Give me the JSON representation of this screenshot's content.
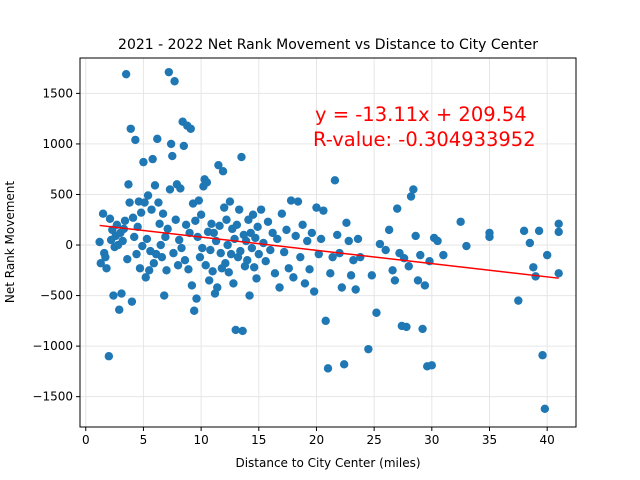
{
  "chart_data": {
    "type": "scatter",
    "title": "2021 - 2022 Net Rank Movement vs Distance to City Center",
    "xlabel": "Distance to City Center (miles)",
    "ylabel": "Net Rank Movement",
    "xlim": [
      -0.5,
      42.5
    ],
    "ylim": [
      -1800,
      1850
    ],
    "xticks": [
      0,
      5,
      10,
      15,
      20,
      25,
      30,
      35,
      40
    ],
    "yticks": [
      -1500,
      -1000,
      -500,
      0,
      500,
      1000,
      1500
    ],
    "grid": true,
    "point_color": "#1f77b4",
    "line_color": "#ff0000",
    "regression": {
      "slope": -13.11,
      "intercept": 209.54,
      "x_range": [
        1.2,
        41.0
      ]
    },
    "annotations": [
      "y = -13.11x + 209.54",
      "R-value: -0.304933952"
    ],
    "points": [
      [
        1.2,
        30
      ],
      [
        1.3,
        -180
      ],
      [
        1.5,
        310
      ],
      [
        1.6,
        -80
      ],
      [
        1.7,
        -120
      ],
      [
        1.8,
        -230
      ],
      [
        2.0,
        -1100
      ],
      [
        2.1,
        260
      ],
      [
        2.2,
        50
      ],
      [
        2.3,
        150
      ],
      [
        2.4,
        -500
      ],
      [
        2.5,
        -20
      ],
      [
        2.6,
        90
      ],
      [
        2.7,
        200
      ],
      [
        2.8,
        0
      ],
      [
        2.9,
        -640
      ],
      [
        3.0,
        120
      ],
      [
        3.1,
        -480
      ],
      [
        3.2,
        40
      ],
      [
        3.3,
        160
      ],
      [
        3.4,
        240
      ],
      [
        3.5,
        1690
      ],
      [
        3.6,
        -140
      ],
      [
        3.7,
        600
      ],
      [
        3.8,
        420
      ],
      [
        3.9,
        1150
      ],
      [
        4.0,
        -560
      ],
      [
        4.1,
        270
      ],
      [
        4.2,
        80
      ],
      [
        4.3,
        1040
      ],
      [
        4.4,
        -90
      ],
      [
        4.5,
        180
      ],
      [
        4.6,
        430
      ],
      [
        4.7,
        -230
      ],
      [
        4.8,
        320
      ],
      [
        4.9,
        -10
      ],
      [
        5.0,
        820
      ],
      [
        5.1,
        420
      ],
      [
        5.2,
        -320
      ],
      [
        5.3,
        60
      ],
      [
        5.4,
        490
      ],
      [
        5.5,
        -250
      ],
      [
        5.6,
        -60
      ],
      [
        5.7,
        350
      ],
      [
        5.8,
        850
      ],
      [
        5.9,
        -180
      ],
      [
        6.0,
        590
      ],
      [
        6.1,
        -90
      ],
      [
        6.2,
        1050
      ],
      [
        6.3,
        420
      ],
      [
        6.4,
        210
      ],
      [
        6.5,
        0
      ],
      [
        6.6,
        -120
      ],
      [
        6.7,
        310
      ],
      [
        6.8,
        -500
      ],
      [
        6.9,
        80
      ],
      [
        7.0,
        -250
      ],
      [
        7.1,
        160
      ],
      [
        7.2,
        1710
      ],
      [
        7.3,
        550
      ],
      [
        7.4,
        1000
      ],
      [
        7.5,
        880
      ],
      [
        7.6,
        -80
      ],
      [
        7.7,
        1620
      ],
      [
        7.8,
        250
      ],
      [
        7.9,
        600
      ],
      [
        8.0,
        -200
      ],
      [
        8.1,
        50
      ],
      [
        8.2,
        560
      ],
      [
        8.3,
        -30
      ],
      [
        8.4,
        1220
      ],
      [
        8.5,
        980
      ],
      [
        8.6,
        -150
      ],
      [
        8.7,
        200
      ],
      [
        8.8,
        1180
      ],
      [
        8.9,
        -240
      ],
      [
        9.0,
        120
      ],
      [
        9.1,
        1150
      ],
      [
        9.2,
        -400
      ],
      [
        9.3,
        410
      ],
      [
        9.4,
        -650
      ],
      [
        9.5,
        240
      ],
      [
        9.6,
        -530
      ],
      [
        9.7,
        80
      ],
      [
        9.8,
        440
      ],
      [
        9.9,
        -120
      ],
      [
        10.0,
        300
      ],
      [
        10.1,
        -30
      ],
      [
        10.2,
        580
      ],
      [
        10.3,
        650
      ],
      [
        10.4,
        -200
      ],
      [
        10.5,
        620
      ],
      [
        10.6,
        130
      ],
      [
        10.7,
        -350
      ],
      [
        10.8,
        -50
      ],
      [
        10.9,
        210
      ],
      [
        11.0,
        -260
      ],
      [
        11.1,
        120
      ],
      [
        11.2,
        -480
      ],
      [
        11.3,
        40
      ],
      [
        11.4,
        -420
      ],
      [
        11.5,
        790
      ],
      [
        11.6,
        190
      ],
      [
        11.7,
        -80
      ],
      [
        11.8,
        -230
      ],
      [
        11.9,
        730
      ],
      [
        12.0,
        370
      ],
      [
        12.1,
        -180
      ],
      [
        12.2,
        250
      ],
      [
        12.3,
        0
      ],
      [
        12.4,
        -270
      ],
      [
        12.5,
        430
      ],
      [
        12.6,
        -90
      ],
      [
        12.7,
        160
      ],
      [
        12.8,
        -380
      ],
      [
        12.9,
        60
      ],
      [
        13.0,
        -840
      ],
      [
        13.1,
        200
      ],
      [
        13.2,
        -120
      ],
      [
        13.3,
        350
      ],
      [
        13.4,
        -60
      ],
      [
        13.5,
        870
      ],
      [
        13.6,
        -850
      ],
      [
        13.7,
        100
      ],
      [
        13.8,
        -210
      ],
      [
        13.9,
        40
      ],
      [
        14.0,
        -150
      ],
      [
        14.1,
        250
      ],
      [
        14.2,
        -500
      ],
      [
        14.3,
        120
      ],
      [
        14.4,
        -30
      ],
      [
        14.5,
        300
      ],
      [
        14.6,
        -220
      ],
      [
        14.7,
        70
      ],
      [
        14.8,
        -330
      ],
      [
        14.9,
        180
      ],
      [
        15.0,
        -90
      ],
      [
        15.2,
        350
      ],
      [
        15.4,
        20
      ],
      [
        15.6,
        -160
      ],
      [
        15.8,
        230
      ],
      [
        16.0,
        -50
      ],
      [
        16.2,
        120
      ],
      [
        16.4,
        -280
      ],
      [
        16.6,
        60
      ],
      [
        16.8,
        -420
      ],
      [
        17.0,
        310
      ],
      [
        17.2,
        -70
      ],
      [
        17.4,
        150
      ],
      [
        17.6,
        -230
      ],
      [
        17.8,
        440
      ],
      [
        18.0,
        -320
      ],
      [
        18.2,
        90
      ],
      [
        18.4,
        430
      ],
      [
        18.6,
        -120
      ],
      [
        18.8,
        200
      ],
      [
        19.0,
        -380
      ],
      [
        19.2,
        40
      ],
      [
        19.4,
        -240
      ],
      [
        19.6,
        120
      ],
      [
        19.8,
        -460
      ],
      [
        20.0,
        370
      ],
      [
        20.2,
        -90
      ],
      [
        20.4,
        60
      ],
      [
        20.6,
        340
      ],
      [
        20.8,
        -750
      ],
      [
        21.0,
        -1220
      ],
      [
        21.2,
        -280
      ],
      [
        21.4,
        -120
      ],
      [
        21.6,
        640
      ],
      [
        21.8,
        100
      ],
      [
        22.0,
        -80
      ],
      [
        22.2,
        -420
      ],
      [
        22.4,
        -1180
      ],
      [
        22.6,
        220
      ],
      [
        22.8,
        40
      ],
      [
        23.0,
        -300
      ],
      [
        23.2,
        -150
      ],
      [
        23.4,
        -440
      ],
      [
        23.6,
        60
      ],
      [
        23.8,
        -120
      ],
      [
        24.5,
        -1030
      ],
      [
        24.8,
        -300
      ],
      [
        25.2,
        -670
      ],
      [
        25.5,
        10
      ],
      [
        26.0,
        -50
      ],
      [
        26.3,
        150
      ],
      [
        26.6,
        -250
      ],
      [
        26.8,
        -350
      ],
      [
        27.0,
        360
      ],
      [
        27.2,
        -80
      ],
      [
        27.4,
        -800
      ],
      [
        27.6,
        -130
      ],
      [
        27.8,
        -810
      ],
      [
        28.0,
        -210
      ],
      [
        28.2,
        480
      ],
      [
        28.4,
        550
      ],
      [
        28.6,
        90
      ],
      [
        28.8,
        -350
      ],
      [
        29.0,
        -100
      ],
      [
        29.2,
        -830
      ],
      [
        29.4,
        -400
      ],
      [
        29.6,
        -1200
      ],
      [
        29.8,
        -160
      ],
      [
        30.0,
        -1190
      ],
      [
        30.2,
        70
      ],
      [
        30.5,
        40
      ],
      [
        31.0,
        -100
      ],
      [
        32.5,
        230
      ],
      [
        33.0,
        -10
      ],
      [
        35.0,
        80
      ],
      [
        35.0,
        120
      ],
      [
        37.5,
        -550
      ],
      [
        38.0,
        140
      ],
      [
        38.5,
        20
      ],
      [
        38.8,
        -220
      ],
      [
        39.0,
        -310
      ],
      [
        39.3,
        140
      ],
      [
        39.6,
        -1090
      ],
      [
        39.8,
        -1620
      ],
      [
        40.0,
        -100
      ],
      [
        41.0,
        210
      ],
      [
        41.0,
        -280
      ],
      [
        41.0,
        130
      ]
    ]
  }
}
